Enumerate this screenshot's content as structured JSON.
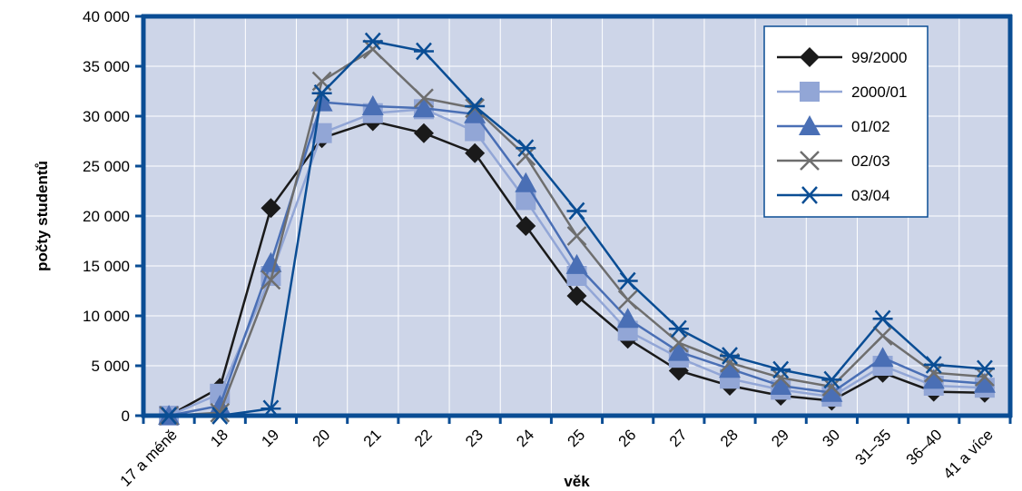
{
  "chart_data": {
    "type": "line",
    "title": "",
    "xlabel": "věk",
    "ylabel": "počty studentů",
    "ylim": [
      0,
      40000
    ],
    "yticks": [
      0,
      5000,
      10000,
      15000,
      20000,
      25000,
      30000,
      35000,
      40000
    ],
    "ytick_labels": [
      "0",
      "5 000",
      "10 000",
      "15 000",
      "20 000",
      "25 000",
      "30 000",
      "35 000",
      "40 000"
    ],
    "categories": [
      "17 a méně",
      "18",
      "19",
      "20",
      "21",
      "22",
      "23",
      "24",
      "25",
      "26",
      "27",
      "28",
      "29",
      "30",
      "31–35",
      "36–40",
      "41 a více"
    ],
    "grid": true,
    "legend_position": "top-right",
    "colors": {
      "plot_background": "#cdd5e8",
      "axis": "#0a4d94",
      "grid": "#ffffff"
    },
    "series": [
      {
        "name": "99/2000",
        "marker": "diamond",
        "color": "#1a1a1a",
        "values": [
          0,
          2800,
          20800,
          27800,
          29500,
          28300,
          26300,
          19000,
          12000,
          7700,
          4500,
          3000,
          2000,
          1500,
          4300,
          2400,
          2300
        ]
      },
      {
        "name": "2000/01",
        "marker": "square",
        "color": "#92a6d6",
        "values": [
          0,
          2200,
          14000,
          28300,
          30300,
          30700,
          28500,
          21600,
          14000,
          8500,
          5800,
          3700,
          2600,
          1900,
          5000,
          3000,
          2800
        ]
      },
      {
        "name": "01/02",
        "marker": "triangle",
        "color": "#4a6fb5",
        "values": [
          0,
          1000,
          15300,
          31400,
          31000,
          30800,
          30200,
          23300,
          15100,
          9700,
          6400,
          4700,
          3000,
          2300,
          5800,
          3600,
          3200
        ]
      },
      {
        "name": "02/03",
        "marker": "x",
        "color": "#6e6e6e",
        "values": [
          0,
          300,
          13600,
          33500,
          36700,
          31800,
          30800,
          26000,
          18000,
          11600,
          7300,
          5300,
          3800,
          2900,
          8000,
          4300,
          3900
        ]
      },
      {
        "name": "03/04",
        "marker": "asterisk",
        "color": "#0a4d94",
        "values": [
          0,
          0,
          700,
          32300,
          37500,
          36500,
          31000,
          26800,
          20500,
          13500,
          8700,
          6000,
          4600,
          3600,
          9700,
          5100,
          4700
        ]
      }
    ]
  }
}
